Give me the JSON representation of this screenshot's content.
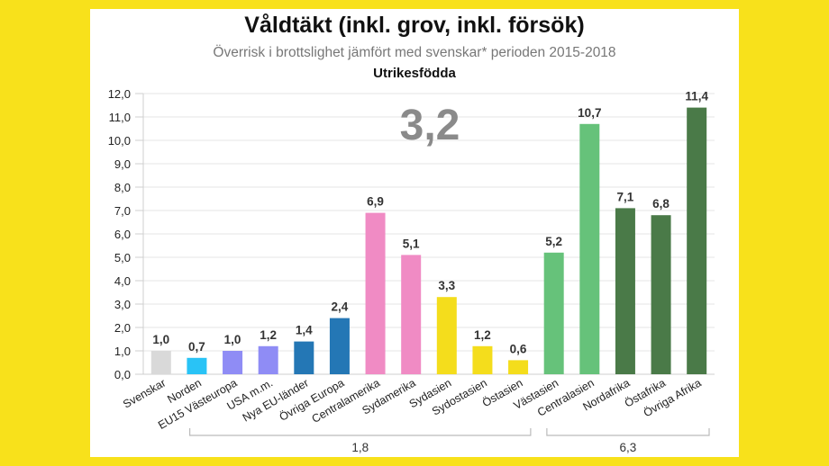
{
  "chart_data": {
    "type": "bar",
    "title": "Våldtäkt (inkl. grov, inkl. försök)",
    "subtitle": "Överrisk i brottslighet jämfört med svenskar* perioden 2015-2018",
    "group_label": "Utrikesfödda",
    "overall_annotation": "3,2",
    "categories": [
      "Svenskar",
      "Norden",
      "EU15 Västeuropa",
      "USA m.m.",
      "Nya EU-länder",
      "Övriga Europa",
      "Centralamerika",
      "Sydamerika",
      "Sydasien",
      "Sydostasien",
      "Östasien",
      "Västasien",
      "Centralasien",
      "Nordafrika",
      "Östafrika",
      "Övriga Afrika"
    ],
    "values": [
      1.0,
      0.7,
      1.0,
      1.2,
      1.4,
      2.4,
      6.9,
      5.1,
      3.3,
      1.2,
      0.6,
      5.2,
      10.7,
      7.1,
      6.8,
      11.4
    ],
    "colors": [
      "#d9d9d9",
      "#29c3f6",
      "#8f8cf5",
      "#8f8cf5",
      "#2477b5",
      "#2477b5",
      "#f08bc4",
      "#f08bc4",
      "#f4dd1c",
      "#f4dd1c",
      "#f4dd1c",
      "#66c27a",
      "#66c27a",
      "#4a7a48",
      "#4a7a48",
      "#4a7a48"
    ],
    "ylim": [
      0,
      12
    ],
    "yticks": [
      "0,0",
      "1,0",
      "2,0",
      "3,0",
      "4,0",
      "5,0",
      "6,0",
      "7,0",
      "8,0",
      "9,0",
      "10,0",
      "11,0",
      "12,0"
    ],
    "grid": true,
    "brackets": [
      {
        "from": "Norden",
        "to": "Östasien",
        "label": "1,8"
      },
      {
        "from": "Västasien",
        "to": "Övriga Afrika",
        "label": "6,3"
      }
    ]
  }
}
